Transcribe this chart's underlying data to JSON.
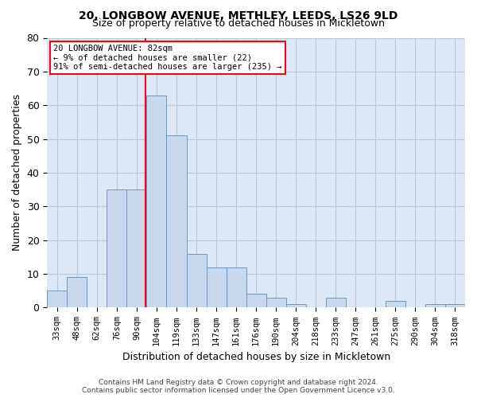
{
  "title": "20, LONGBOW AVENUE, METHLEY, LEEDS, LS26 9LD",
  "subtitle": "Size of property relative to detached houses in Mickletown",
  "xlabel": "Distribution of detached houses by size in Mickletown",
  "ylabel": "Number of detached properties",
  "bar_color": "#c8d9ee",
  "bar_edge_color": "#6699cc",
  "grid_color": "#b8c8dc",
  "background_color": "#dce8f5",
  "categories": [
    "33sqm",
    "48sqm",
    "62sqm",
    "76sqm",
    "90sqm",
    "104sqm",
    "119sqm",
    "133sqm",
    "147sqm",
    "161sqm",
    "176sqm",
    "190sqm",
    "204sqm",
    "218sqm",
    "233sqm",
    "247sqm",
    "261sqm",
    "275sqm",
    "290sqm",
    "304sqm",
    "318sqm"
  ],
  "values": [
    5,
    9,
    0,
    35,
    35,
    63,
    51,
    16,
    12,
    12,
    4,
    3,
    1,
    0,
    3,
    0,
    0,
    2,
    0,
    1,
    1
  ],
  "ylim": [
    0,
    80
  ],
  "yticks": [
    0,
    10,
    20,
    30,
    40,
    50,
    60,
    70,
    80
  ],
  "red_line_x": 4.43,
  "annotation_line1": "20 LONGBOW AVENUE: 82sqm",
  "annotation_line2": "← 9% of detached houses are smaller (22)",
  "annotation_line3": "91% of semi-detached houses are larger (235) →",
  "footer_line1": "Contains HM Land Registry data © Crown copyright and database right 2024.",
  "footer_line2": "Contains public sector information licensed under the Open Government Licence v3.0."
}
